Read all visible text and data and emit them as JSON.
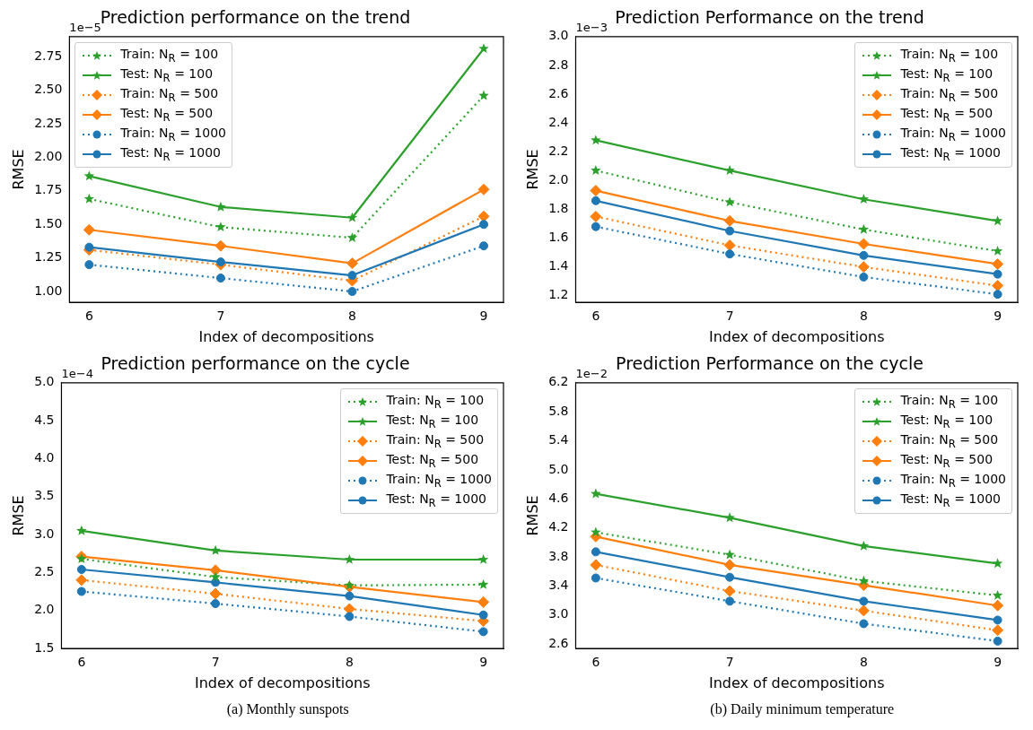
{
  "chart_data": [
    {
      "type": "line",
      "title": "Prediction performance on the trend",
      "xlabel": "Index of decompositions",
      "ylabel": "RMSE",
      "x": [
        6,
        7,
        8,
        9
      ],
      "xlim": [
        5.85,
        9.15
      ],
      "xticks": [
        6,
        7,
        8,
        9
      ],
      "ylim": [
        0.92,
        2.9
      ],
      "yticks": [
        {
          "value": 1,
          "label": "1.00"
        },
        1.25,
        {
          "value": 1.5,
          "label": "1.50"
        },
        1.75,
        {
          "value": 2,
          "label": "2.00"
        },
        2.25,
        {
          "value": 2.5,
          "label": "2.50"
        },
        2.75
      ],
      "legend": "top left",
      "annotations": [
        "1e−5"
      ],
      "series": [
        {
          "name": "Train: N$_{R}$ = 100",
          "color": "#2ca02c",
          "marker": "star",
          "line_style": "dotted",
          "values": [
            1.69,
            1.48,
            1.4,
            2.46
          ]
        },
        {
          "name": "Test: N$_{R}$ = 100",
          "color": "#2ca02c",
          "marker": "star",
          "line_style": "solid",
          "values": [
            1.86,
            1.63,
            1.55,
            2.81
          ]
        },
        {
          "name": "Train: N$_{R}$ = 500",
          "color": "#ff7f0e",
          "marker": "diamond",
          "line_style": "dotted",
          "values": [
            1.31,
            1.2,
            1.08,
            1.56
          ]
        },
        {
          "name": "Test: N$_{R}$ = 500",
          "color": "#ff7f0e",
          "marker": "diamond",
          "line_style": "solid",
          "values": [
            1.46,
            1.34,
            1.21,
            1.76
          ]
        },
        {
          "name": "Train: N$_{R}$ = 1000",
          "color": "#1f77b4",
          "marker": "circle",
          "line_style": "dotted",
          "values": [
            1.2,
            1.1,
            1.0,
            1.34
          ]
        },
        {
          "name": "Test: N$_{R}$ = 1000",
          "color": "#1f77b4",
          "marker": "circle",
          "line_style": "solid",
          "values": [
            1.33,
            1.22,
            1.12,
            1.5
          ]
        }
      ]
    },
    {
      "type": "line",
      "title": "Prediction Performance on the trend",
      "xlabel": "Index of decompositions",
      "ylabel": "RMSE",
      "x": [
        6,
        7,
        8,
        9
      ],
      "xlim": [
        5.85,
        9.15
      ],
      "xticks": [
        6,
        7,
        8,
        9
      ],
      "ylim": [
        1.155,
        3.0
      ],
      "yticks": [
        1.2,
        1.4,
        1.6,
        1.8,
        {
          "value": 2,
          "label": "2.0"
        },
        2.2,
        2.4,
        2.6,
        2.8,
        {
          "value": 3,
          "label": "3.0"
        }
      ],
      "legend": "top right",
      "annotations": [
        "1e−3"
      ],
      "series": [
        {
          "name": "Train: N$_{R}$ = 100",
          "color": "#2ca02c",
          "marker": "star",
          "line_style": "dotted",
          "values": [
            2.07,
            1.85,
            1.66,
            1.51
          ]
        },
        {
          "name": "Test: N$_{R}$ = 100",
          "color": "#2ca02c",
          "marker": "star",
          "line_style": "solid",
          "values": [
            2.28,
            2.07,
            1.87,
            1.72
          ]
        },
        {
          "name": "Train: N$_{R}$ = 500",
          "color": "#ff7f0e",
          "marker": "diamond",
          "line_style": "dotted",
          "values": [
            1.75,
            1.55,
            1.4,
            1.27
          ]
        },
        {
          "name": "Test: N$_{R}$ = 500",
          "color": "#ff7f0e",
          "marker": "diamond",
          "line_style": "solid",
          "values": [
            1.93,
            1.72,
            1.56,
            1.42
          ]
        },
        {
          "name": "Train: N$_{R}$ = 1000",
          "color": "#1f77b4",
          "marker": "circle",
          "line_style": "dotted",
          "values": [
            1.68,
            1.49,
            1.33,
            1.21
          ]
        },
        {
          "name": "Test: N$_{R}$ = 1000",
          "color": "#1f77b4",
          "marker": "circle",
          "line_style": "solid",
          "values": [
            1.86,
            1.65,
            1.48,
            1.35
          ]
        }
      ]
    },
    {
      "type": "line",
      "title": "Prediction performance on the cycle",
      "xlabel": "Index of decompositions",
      "ylabel": "RMSE",
      "x": [
        6,
        7,
        8,
        9
      ],
      "xlim": [
        5.85,
        9.15
      ],
      "xticks": [
        6,
        7,
        8,
        9
      ],
      "ylim": [
        1.5,
        5.0
      ],
      "yticks": [
        1.5,
        {
          "value": 2,
          "label": "2.0"
        },
        2.5,
        {
          "value": 3,
          "label": "3.0"
        },
        3.5,
        {
          "value": 4,
          "label": "4.0"
        },
        4.5,
        {
          "value": 5,
          "label": "5.0"
        }
      ],
      "legend": "top right",
      "annotations": [
        "1e−4",
        "(a) Monthly sunspots"
      ],
      "series": [
        {
          "name": "Train: N$_{R}$ = 100",
          "color": "#2ca02c",
          "marker": "star",
          "line_style": "dotted",
          "values": [
            2.68,
            2.44,
            2.33,
            2.34
          ]
        },
        {
          "name": "Test: N$_{R}$ = 100",
          "color": "#2ca02c",
          "marker": "star",
          "line_style": "solid",
          "values": [
            3.05,
            2.79,
            2.67,
            2.67
          ]
        },
        {
          "name": "Train: N$_{R}$ = 500",
          "color": "#ff7f0e",
          "marker": "diamond",
          "line_style": "dotted",
          "values": [
            2.4,
            2.22,
            2.02,
            1.86
          ]
        },
        {
          "name": "Test: N$_{R}$ = 500",
          "color": "#ff7f0e",
          "marker": "diamond",
          "line_style": "solid",
          "values": [
            2.71,
            2.53,
            2.31,
            2.11
          ]
        },
        {
          "name": "Train: N$_{R}$ = 1000",
          "color": "#1f77b4",
          "marker": "circle",
          "line_style": "dotted",
          "values": [
            2.25,
            2.09,
            1.92,
            1.72
          ]
        },
        {
          "name": "Test: N$_{R}$ = 1000",
          "color": "#1f77b4",
          "marker": "circle",
          "line_style": "solid",
          "values": [
            2.54,
            2.37,
            2.19,
            1.94
          ]
        }
      ]
    },
    {
      "type": "line",
      "title": "Prediction Performance on the cycle",
      "xlabel": "Index of decompositions",
      "ylabel": "RMSE",
      "x": [
        6,
        7,
        8,
        9
      ],
      "xlim": [
        5.85,
        9.15
      ],
      "xticks": [
        6,
        7,
        8,
        9
      ],
      "ylim": [
        2.54,
        6.2
      ],
      "yticks": [
        2.6,
        {
          "value": 3,
          "label": "3.0"
        },
        3.4,
        3.8,
        4.2,
        4.6,
        {
          "value": 5,
          "label": "5.0"
        },
        5.4,
        5.8,
        6.2
      ],
      "legend": "top right",
      "annotations": [
        "1e−2",
        "(b) Daily minimum temperature"
      ],
      "series": [
        {
          "name": "Train: N$_{R}$ = 100",
          "color": "#2ca02c",
          "marker": "star",
          "line_style": "dotted",
          "values": [
            4.14,
            3.83,
            3.47,
            3.27
          ]
        },
        {
          "name": "Test: N$_{R}$ = 100",
          "color": "#2ca02c",
          "marker": "star",
          "line_style": "solid",
          "values": [
            4.67,
            4.34,
            3.95,
            3.71
          ]
        },
        {
          "name": "Train: N$_{R}$ = 500",
          "color": "#ff7f0e",
          "marker": "diamond",
          "line_style": "dotted",
          "values": [
            3.69,
            3.33,
            3.06,
            2.79
          ]
        },
        {
          "name": "Test: N$_{R}$ = 500",
          "color": "#ff7f0e",
          "marker": "diamond",
          "line_style": "solid",
          "values": [
            4.08,
            3.69,
            3.41,
            3.13
          ]
        },
        {
          "name": "Train: N$_{R}$ = 1000",
          "color": "#1f77b4",
          "marker": "circle",
          "line_style": "dotted",
          "values": [
            3.51,
            3.19,
            2.88,
            2.64
          ]
        },
        {
          "name": "Test: N$_{R}$ = 1000",
          "color": "#1f77b4",
          "marker": "circle",
          "line_style": "solid",
          "values": [
            3.87,
            3.52,
            3.19,
            2.93
          ]
        }
      ]
    }
  ]
}
